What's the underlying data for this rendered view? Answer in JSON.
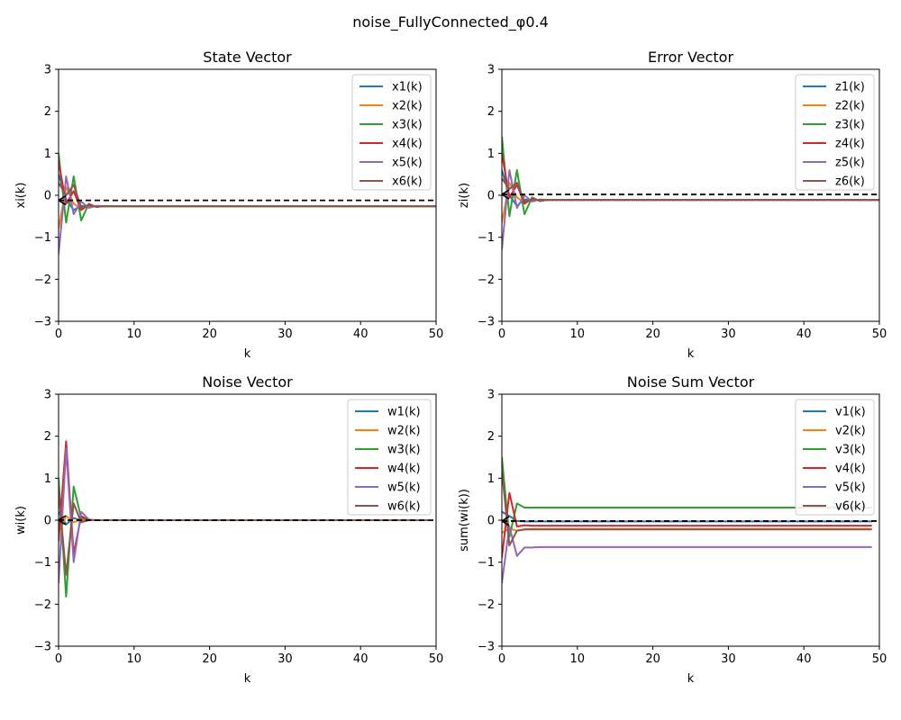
{
  "figure": {
    "title": "noise_FullyConnected_φ0.4"
  },
  "colors": [
    "#1f77b4",
    "#ff7f0e",
    "#2ca02c",
    "#d62728",
    "#9467bd",
    "#8c564b"
  ],
  "chart_data": [
    {
      "type": "line",
      "title": "State Vector",
      "xlabel": "k",
      "ylabel": "xi(k)",
      "xlim": [
        0,
        50
      ],
      "ylim": [
        -3,
        3
      ],
      "xticks": [
        0,
        10,
        20,
        30,
        40,
        50
      ],
      "yticks": [
        -3,
        -2,
        -1,
        0,
        1,
        2,
        3
      ],
      "legend_position": "upper right",
      "reference_line": {
        "y": -0.12,
        "x": [
          0,
          50
        ],
        "style": "dashed",
        "color": "#000000"
      },
      "x": [
        0,
        1,
        2,
        3,
        4,
        5,
        6,
        7,
        8,
        9,
        10,
        15,
        20,
        25,
        30,
        35,
        40,
        45,
        50
      ],
      "series": [
        {
          "name": "x1(k)",
          "values": [
            0.5,
            -0.1,
            -0.35,
            -0.25,
            -0.27,
            -0.26,
            -0.26,
            -0.26,
            -0.26,
            -0.26,
            -0.26,
            -0.26,
            -0.26,
            -0.26,
            -0.26,
            -0.26,
            -0.26,
            -0.26,
            -0.26
          ]
        },
        {
          "name": "x2(k)",
          "values": [
            -0.8,
            0.2,
            -0.2,
            -0.32,
            -0.25,
            -0.26,
            -0.26,
            -0.26,
            -0.26,
            -0.26,
            -0.26,
            -0.26,
            -0.26,
            -0.26,
            -0.26,
            -0.26,
            -0.26,
            -0.26,
            -0.26
          ]
        },
        {
          "name": "x3(k)",
          "values": [
            1.0,
            -0.65,
            0.45,
            -0.6,
            -0.2,
            -0.28,
            -0.26,
            -0.26,
            -0.26,
            -0.26,
            -0.26,
            -0.26,
            -0.26,
            -0.26,
            -0.26,
            -0.26,
            -0.26,
            -0.26,
            -0.26
          ]
        },
        {
          "name": "x4(k)",
          "values": [
            0.8,
            -0.2,
            0.1,
            -0.35,
            -0.22,
            -0.27,
            -0.26,
            -0.26,
            -0.26,
            -0.26,
            -0.26,
            -0.26,
            -0.26,
            -0.26,
            -0.26,
            -0.26,
            -0.26,
            -0.26,
            -0.26
          ]
        },
        {
          "name": "x5(k)",
          "values": [
            -1.4,
            0.45,
            -0.45,
            -0.15,
            -0.3,
            -0.25,
            -0.26,
            -0.26,
            -0.26,
            -0.26,
            -0.26,
            -0.26,
            -0.26,
            -0.26,
            -0.26,
            -0.26,
            -0.26,
            -0.26,
            -0.26
          ]
        },
        {
          "name": "x6(k)",
          "values": [
            0.3,
            0.0,
            0.25,
            -0.3,
            -0.24,
            -0.27,
            -0.26,
            -0.26,
            -0.26,
            -0.26,
            -0.26,
            -0.26,
            -0.26,
            -0.26,
            -0.26,
            -0.26,
            -0.26,
            -0.26,
            -0.26
          ]
        }
      ]
    },
    {
      "type": "line",
      "title": "Error Vector",
      "xlabel": "k",
      "ylabel": "zi(k)",
      "xlim": [
        0,
        50
      ],
      "ylim": [
        -3,
        3
      ],
      "xticks": [
        0,
        10,
        20,
        30,
        40,
        50
      ],
      "yticks": [
        -3,
        -2,
        -1,
        0,
        1,
        2,
        3
      ],
      "legend_position": "upper right",
      "reference_line": {
        "y": 0.02,
        "x": [
          0,
          50
        ],
        "style": "dashed",
        "color": "#000000"
      },
      "x": [
        0,
        1,
        2,
        3,
        4,
        5,
        6,
        7,
        8,
        9,
        10,
        15,
        20,
        25,
        30,
        35,
        40,
        45,
        50
      ],
      "series": [
        {
          "name": "z1(k)",
          "values": [
            0.6,
            0.0,
            -0.25,
            -0.1,
            -0.12,
            -0.11,
            -0.11,
            -0.11,
            -0.11,
            -0.11,
            -0.11,
            -0.11,
            -0.11,
            -0.11,
            -0.11,
            -0.11,
            -0.11,
            -0.11,
            -0.11
          ]
        },
        {
          "name": "z2(k)",
          "values": [
            -0.65,
            0.3,
            -0.05,
            -0.18,
            -0.1,
            -0.12,
            -0.11,
            -0.11,
            -0.11,
            -0.11,
            -0.11,
            -0.11,
            -0.11,
            -0.11,
            -0.11,
            -0.11,
            -0.11,
            -0.11,
            -0.11
          ]
        },
        {
          "name": "z3(k)",
          "values": [
            1.4,
            -0.5,
            0.6,
            -0.45,
            -0.05,
            -0.14,
            -0.11,
            -0.11,
            -0.11,
            -0.11,
            -0.11,
            -0.11,
            -0.11,
            -0.11,
            -0.11,
            -0.11,
            -0.11,
            -0.11,
            -0.11
          ]
        },
        {
          "name": "z4(k)",
          "values": [
            1.0,
            -0.05,
            0.25,
            -0.2,
            -0.08,
            -0.12,
            -0.11,
            -0.11,
            -0.11,
            -0.11,
            -0.11,
            -0.11,
            -0.11,
            -0.11,
            -0.11,
            -0.11,
            -0.11,
            -0.11,
            -0.11
          ]
        },
        {
          "name": "z5(k)",
          "values": [
            -1.3,
            0.6,
            -0.3,
            0.0,
            -0.15,
            -0.1,
            -0.11,
            -0.11,
            -0.11,
            -0.11,
            -0.11,
            -0.11,
            -0.11,
            -0.11,
            -0.11,
            -0.11,
            -0.11,
            -0.11,
            -0.11
          ]
        },
        {
          "name": "z6(k)",
          "values": [
            0.4,
            0.15,
            0.3,
            -0.15,
            -0.1,
            -0.11,
            -0.11,
            -0.11,
            -0.11,
            -0.11,
            -0.11,
            -0.11,
            -0.11,
            -0.11,
            -0.11,
            -0.11,
            -0.11,
            -0.11,
            -0.11
          ]
        }
      ]
    },
    {
      "type": "line",
      "title": "Noise Vector",
      "xlabel": "k",
      "ylabel": "wi(k)",
      "xlim": [
        0,
        50
      ],
      "ylim": [
        -3,
        3
      ],
      "xticks": [
        0,
        10,
        20,
        30,
        40,
        50
      ],
      "yticks": [
        -3,
        -2,
        -1,
        0,
        1,
        2,
        3
      ],
      "legend_position": "upper right",
      "reference_line": {
        "y": 0.0,
        "x": [
          0,
          50
        ],
        "style": "dashed",
        "color": "#000000"
      },
      "x": [
        0,
        1,
        2,
        3,
        4,
        5,
        6,
        7,
        8,
        9,
        10,
        15,
        20,
        25,
        30,
        35,
        40,
        45,
        49
      ],
      "series": [
        {
          "name": "w1(k)",
          "values": [
            0.2,
            -0.1,
            0.05,
            0.0,
            0.0,
            0.0,
            0.0,
            0.0,
            0.0,
            0.0,
            0.0,
            0.0,
            0.0,
            0.0,
            0.0,
            0.0,
            0.0,
            0.0,
            0.0
          ]
        },
        {
          "name": "w2(k)",
          "values": [
            -0.3,
            0.1,
            -0.05,
            0.02,
            0.0,
            0.0,
            0.0,
            0.0,
            0.0,
            0.0,
            0.0,
            0.0,
            0.0,
            0.0,
            0.0,
            0.0,
            0.0,
            0.0,
            0.0
          ]
        },
        {
          "name": "w3(k)",
          "values": [
            1.0,
            -1.82,
            0.8,
            0.05,
            0.0,
            0.0,
            0.0,
            0.0,
            0.0,
            0.0,
            0.0,
            0.0,
            0.0,
            0.0,
            0.0,
            0.0,
            0.0,
            0.0,
            0.0
          ]
        },
        {
          "name": "w4(k)",
          "values": [
            -0.5,
            1.88,
            -0.8,
            0.1,
            0.0,
            0.0,
            0.0,
            0.0,
            0.0,
            0.0,
            0.0,
            0.0,
            0.0,
            0.0,
            0.0,
            0.0,
            0.0,
            0.0,
            0.0
          ]
        },
        {
          "name": "w5(k)",
          "values": [
            -1.5,
            1.7,
            -1.0,
            0.2,
            0.02,
            0.0,
            0.0,
            0.0,
            0.0,
            0.0,
            0.0,
            0.0,
            0.0,
            0.0,
            0.0,
            0.0,
            0.0,
            0.0,
            0.0
          ]
        },
        {
          "name": "w6(k)",
          "values": [
            0.7,
            -1.3,
            0.4,
            -0.05,
            0.0,
            0.0,
            0.0,
            0.0,
            0.0,
            0.0,
            0.0,
            0.0,
            0.0,
            0.0,
            0.0,
            0.0,
            0.0,
            0.0,
            0.0
          ]
        }
      ]
    },
    {
      "type": "line",
      "title": "Noise Sum Vector",
      "xlabel": "k",
      "ylabel": "sum(wi(k))",
      "xlim": [
        0,
        50
      ],
      "ylim": [
        -3,
        3
      ],
      "xticks": [
        0,
        10,
        20,
        30,
        40,
        50
      ],
      "yticks": [
        -3,
        -2,
        -1,
        0,
        1,
        2,
        3
      ],
      "legend_position": "upper right",
      "reference_line": {
        "y": -0.02,
        "x": [
          0,
          50
        ],
        "style": "dashed",
        "color": "#000000"
      },
      "x": [
        0,
        1,
        2,
        3,
        4,
        5,
        6,
        7,
        8,
        9,
        10,
        15,
        20,
        25,
        30,
        35,
        40,
        45,
        49
      ],
      "series": [
        {
          "name": "v1(k)",
          "values": [
            0.2,
            0.1,
            -0.02,
            -0.03,
            -0.03,
            -0.03,
            -0.03,
            -0.03,
            -0.03,
            -0.03,
            -0.03,
            -0.03,
            -0.03,
            -0.03,
            -0.03,
            -0.03,
            -0.03,
            -0.03,
            -0.03
          ]
        },
        {
          "name": "v2(k)",
          "values": [
            -0.3,
            -0.2,
            -0.25,
            -0.22,
            -0.21,
            -0.21,
            -0.21,
            -0.21,
            -0.21,
            -0.21,
            -0.21,
            -0.21,
            -0.21,
            -0.21,
            -0.21,
            -0.21,
            -0.21,
            -0.21,
            -0.21
          ]
        },
        {
          "name": "v3(k)",
          "values": [
            1.5,
            -0.4,
            0.4,
            0.3,
            0.3,
            0.3,
            0.3,
            0.3,
            0.3,
            0.3,
            0.3,
            0.3,
            0.3,
            0.3,
            0.3,
            0.3,
            0.3,
            0.3,
            0.3
          ]
        },
        {
          "name": "v4(k)",
          "values": [
            -0.9,
            0.65,
            -0.15,
            -0.12,
            -0.13,
            -0.13,
            -0.13,
            -0.13,
            -0.13,
            -0.13,
            -0.13,
            -0.13,
            -0.13,
            -0.13,
            -0.13,
            -0.13,
            -0.13,
            -0.13,
            -0.13
          ]
        },
        {
          "name": "v5(k)",
          "values": [
            -1.5,
            -0.15,
            -0.85,
            -0.65,
            -0.65,
            -0.64,
            -0.64,
            -0.64,
            -0.64,
            -0.64,
            -0.64,
            -0.64,
            -0.64,
            -0.64,
            -0.64,
            -0.64,
            -0.64,
            -0.64,
            -0.64
          ]
        },
        {
          "name": "v6(k)",
          "values": [
            1.2,
            -0.6,
            -0.25,
            -0.22,
            -0.22,
            -0.22,
            -0.22,
            -0.22,
            -0.22,
            -0.22,
            -0.22,
            -0.22,
            -0.22,
            -0.22,
            -0.22,
            -0.22,
            -0.22,
            -0.22,
            -0.22
          ]
        }
      ]
    }
  ]
}
